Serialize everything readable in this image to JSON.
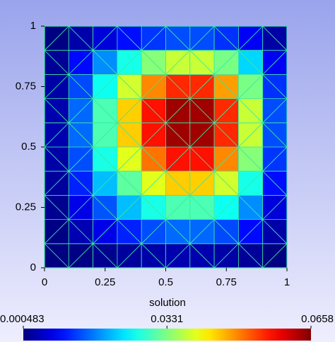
{
  "chart_data": {
    "type": "mesh",
    "xlim": [
      0,
      1
    ],
    "ylim": [
      0,
      1
    ],
    "xticks": [
      0,
      0.25,
      0.5,
      0.75,
      1
    ],
    "yticks": [
      0,
      0.25,
      0.5,
      0.75,
      1
    ],
    "z": [
      [
        0.0005,
        0.0008,
        0.0016,
        0.0024,
        0.0031,
        0.0035,
        0.0035,
        0.003,
        0.0021,
        0.0007
      ],
      [
        0.0008,
        0.0037,
        0.0072,
        0.0107,
        0.0136,
        0.0154,
        0.0153,
        0.0133,
        0.0091,
        0.0033
      ],
      [
        0.0016,
        0.0072,
        0.014,
        0.0208,
        0.0265,
        0.0299,
        0.0298,
        0.0258,
        0.0177,
        0.0063
      ],
      [
        0.0024,
        0.0107,
        0.0208,
        0.031,
        0.0395,
        0.0445,
        0.0444,
        0.0384,
        0.0264,
        0.0094
      ],
      [
        0.0031,
        0.0136,
        0.0265,
        0.0395,
        0.0503,
        0.0566,
        0.0566,
        0.0489,
        0.0336,
        0.012
      ],
      [
        0.0035,
        0.0154,
        0.0299,
        0.0445,
        0.0566,
        0.0638,
        0.0638,
        0.0551,
        0.0378,
        0.0135
      ],
      [
        0.0035,
        0.0153,
        0.0298,
        0.0444,
        0.0566,
        0.0638,
        0.0637,
        0.055,
        0.0378,
        0.0135
      ],
      [
        0.003,
        0.0133,
        0.0258,
        0.0384,
        0.0489,
        0.0551,
        0.055,
        0.0475,
        0.0327,
        0.0117
      ],
      [
        0.0021,
        0.0091,
        0.0177,
        0.0264,
        0.0336,
        0.0378,
        0.0378,
        0.0327,
        0.0224,
        0.008
      ],
      [
        0.0007,
        0.0033,
        0.0063,
        0.0094,
        0.012,
        0.0135,
        0.0135,
        0.0117,
        0.008,
        0.0029
      ]
    ],
    "colorbar": {
      "title": "solution",
      "lim": [
        0.000483,
        0.0658
      ],
      "ticks": [
        {
          "value": 0.000483,
          "label": "0.000483"
        },
        {
          "value": 0.0331,
          "label": "0.0331"
        },
        {
          "value": 0.0658,
          "label": "0.0658"
        }
      ],
      "colormap": "jet"
    },
    "mesh_color": "#3fe8a0"
  }
}
